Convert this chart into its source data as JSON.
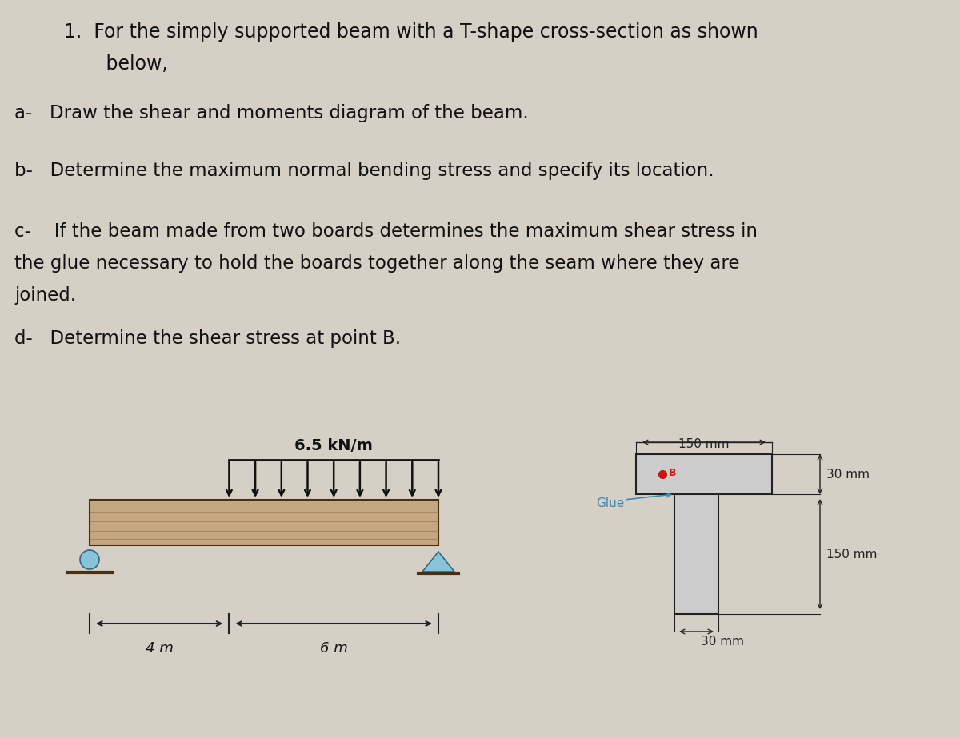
{
  "bg_color": "#d6cfc6",
  "text_color": "#111111",
  "title_line1": "1.  For the simply supported beam with a T-shape cross-section as shown",
  "title_line2": "       below,",
  "part_a": "a-   Draw the shear and moments diagram of the beam.",
  "part_b": "b-   Determine the maximum normal bending stress and specify its location.",
  "part_c_line1": "c-    If the beam made from two boards determines the maximum shear stress in",
  "part_c_line2": "the glue necessary to hold the boards together along the seam where they are",
  "part_c_line3": "joined.",
  "part_d": "d-   Determine the shear stress at point B.",
  "load_label": "6.5 kN/m",
  "dim_4m": "4 m",
  "dim_6m": "6 m",
  "dim_150mm_top": "150 mm",
  "dim_30mm_right1": "30 mm",
  "dim_150mm_right2": "150 mm",
  "dim_30mm_bot": "30 mm",
  "glue_label": "Glue",
  "beam_fill_color": "#c4a882",
  "beam_stroke_color": "#4a3010",
  "support_color": "#88c4d8",
  "arrow_color": "#111111",
  "glue_text_color": "#3a8ab0",
  "point_b_color": "#cc1111",
  "dim_line_color": "#222222",
  "cross_section_fill": "#cccccc",
  "cross_section_stroke": "#222222"
}
